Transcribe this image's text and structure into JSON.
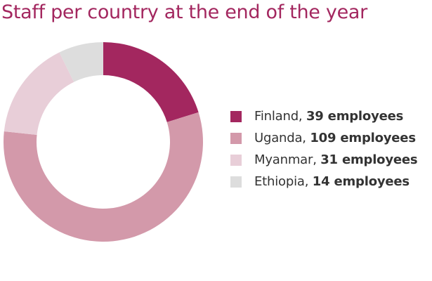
{
  "title": "Staff per country at the end of the year",
  "chart_data": {
    "type": "pie",
    "variant": "donut",
    "title": "Staff per country at the end of the year",
    "slices": [
      {
        "label": "Finland",
        "value": 39,
        "display": "39 employees",
        "color": "#a3275f"
      },
      {
        "label": "Uganda",
        "value": 109,
        "display": "109 employees",
        "color": "#d399aa"
      },
      {
        "label": "Myanmar",
        "value": 31,
        "display": "31 employees",
        "color": "#e8ced8"
      },
      {
        "label": "Ethiopia",
        "value": 14,
        "display": "14 employees",
        "color": "#dddddd"
      }
    ],
    "legend_position": "right"
  }
}
